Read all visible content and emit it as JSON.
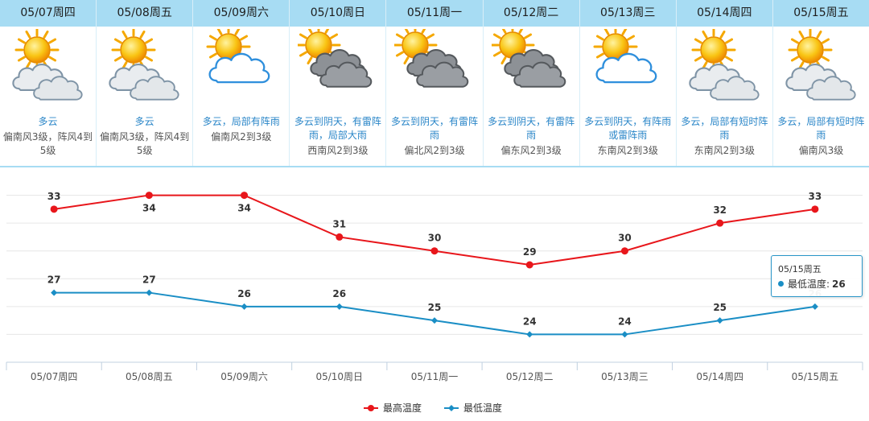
{
  "days": [
    {
      "date": "05/07周四",
      "icon": "partly-cloudy-icon",
      "condition": "多云",
      "wind": "偏南风3级，阵风4到5级"
    },
    {
      "date": "05/08周五",
      "icon": "partly-cloudy-icon",
      "condition": "多云",
      "wind": "偏南风3级，阵风4到5级"
    },
    {
      "date": "05/09周六",
      "icon": "cloudy-shower-icon",
      "condition": "多云，局部有阵雨",
      "wind": "偏南风2到3级"
    },
    {
      "date": "05/10周日",
      "icon": "overcast-storm-icon",
      "condition": "多云到阴天，有雷阵雨，局部大雨",
      "wind": "西南风2到3级"
    },
    {
      "date": "05/11周一",
      "icon": "overcast-storm-icon",
      "condition": "多云到阴天，有雷阵雨",
      "wind": "偏北风2到3级"
    },
    {
      "date": "05/12周二",
      "icon": "overcast-storm-icon",
      "condition": "多云到阴天，有雷阵雨",
      "wind": "偏东风2到3级"
    },
    {
      "date": "05/13周三",
      "icon": "cloudy-shower-icon",
      "condition": "多云到阴天，有阵雨或雷阵雨",
      "wind": "东南风2到3级"
    },
    {
      "date": "05/14周四",
      "icon": "partly-cloudy-icon",
      "condition": "多云，局部有短时阵雨",
      "wind": "东南风2到3级"
    },
    {
      "date": "05/15周五",
      "icon": "partly-cloudy-icon",
      "condition": "多云，局部有短时阵雨",
      "wind": "偏南风3级"
    }
  ],
  "chart_data": {
    "type": "line",
    "categories": [
      "05/07周四",
      "05/08周五",
      "05/09周六",
      "05/10周日",
      "05/11周一",
      "05/12周二",
      "05/13周三",
      "05/14周四",
      "05/15周五"
    ],
    "series": [
      {
        "name": "最高温度",
        "color": "#e8161b",
        "marker": "circle",
        "values": [
          33,
          34,
          34,
          31,
          30,
          29,
          30,
          32,
          33
        ]
      },
      {
        "name": "最低温度",
        "color": "#1a8ec5",
        "marker": "diamond",
        "values": [
          27,
          27,
          26,
          26,
          25,
          24,
          24,
          25,
          26
        ]
      }
    ],
    "ylim": [
      22,
      36
    ],
    "grid": true,
    "legend": "bottom-center"
  },
  "tooltip": {
    "title": "05/15周五",
    "label": "最低温度:",
    "value": "26"
  },
  "colors": {
    "header_bg": "#a7dcf3",
    "condition_text": "#2a86c8",
    "high": "#e8161b",
    "low": "#1a8ec5"
  }
}
